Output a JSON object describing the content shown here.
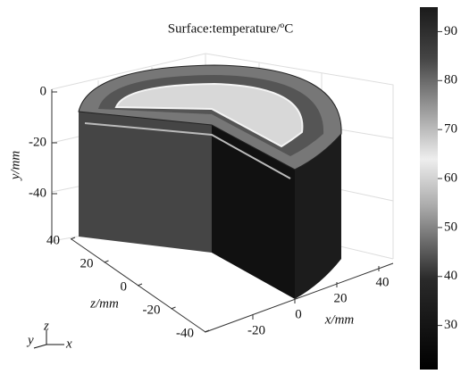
{
  "chart_data": {
    "type": "surface3d",
    "title": "Surface:temperature/ºC",
    "x_axis": {
      "label": "x/mm",
      "ticks": [
        -20,
        0,
        20,
        40
      ]
    },
    "y_axis": {
      "label": "y/mm",
      "ticks": [
        0,
        -20,
        -40
      ]
    },
    "z_axis": {
      "label": "z/mm",
      "ticks": [
        40,
        20,
        0,
        -20,
        -40
      ]
    },
    "colorbar": {
      "lim": [
        21,
        95
      ],
      "ticks": [
        30,
        40,
        50,
        60,
        70,
        80,
        90
      ]
    },
    "triad": [
      "y",
      "z",
      "x"
    ]
  }
}
